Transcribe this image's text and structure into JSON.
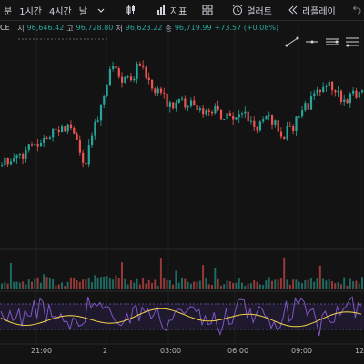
{
  "toolbar": {
    "interval_day_partial": "분",
    "interval_1h": "1시간",
    "interval_4h": "4시간",
    "interval_day": "날",
    "indicators_label": "지표",
    "alert_label": "얼러트",
    "replay_label": "리플레이"
  },
  "legend": {
    "symbol_partial": "CE",
    "open_label": "시",
    "open_value": "96,646.42",
    "high_label": "고",
    "high_value": "96,728.80",
    "low_label": "저",
    "low_value": "96,623.22",
    "close_label": "종",
    "close_value": "96,719.99",
    "change": "+73.57 (+0.08%)"
  },
  "time_axis": [
    "21:00",
    "2",
    "03:00",
    "06:00",
    "09:00",
    "12"
  ],
  "colors": {
    "up": "#26a69a",
    "down": "#ef5350",
    "background": "#131313",
    "oscillator_line": "#7e57c2",
    "signal_line": "#f5d547",
    "band_fill": "#2a1f45"
  },
  "chart_data": {
    "type": "candlestick",
    "panes": [
      "price",
      "volume",
      "oscillator"
    ],
    "price_shape": "rise from ~21:00 to a peak shortly after 2 (00:00), decline until ~07:00, then recovery near 09:00-12:00",
    "series": []
  }
}
